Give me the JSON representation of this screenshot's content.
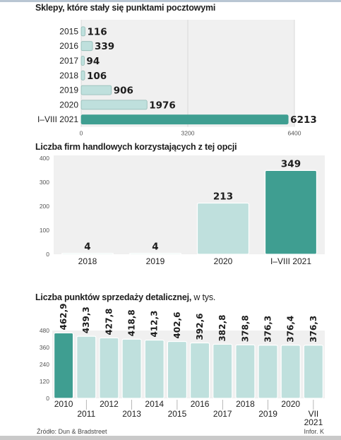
{
  "footer": {
    "source": "Źródło: Dun & Bradstreet",
    "credit": "Infor. K"
  },
  "colors": {
    "highlight": "#3f9e91",
    "bar": "#bfe0dd",
    "bar_stroke": "#ffffff",
    "panel": "#f0f0f0",
    "text": "#1d1d1d"
  },
  "chart_data": [
    {
      "type": "bar",
      "orientation": "horizontal",
      "title": "Sklepy, które stały się punktami pocztowymi",
      "categories": [
        "2015",
        "2016",
        "2017",
        "2018",
        "2019",
        "2020",
        "I–VIII 2021"
      ],
      "values": [
        116,
        339,
        94,
        106,
        906,
        1976,
        6213
      ],
      "value_labels": [
        "116",
        "339",
        "94",
        "106",
        "906",
        "1976",
        "6213"
      ],
      "highlight_index": 6,
      "xlim": [
        0,
        6400
      ],
      "xticks": [
        0,
        3200,
        6400
      ],
      "xtick_labels": [
        "0",
        "3200",
        "6400"
      ],
      "grid": true
    },
    {
      "type": "bar",
      "title": "Liczba firm handlowych korzystających z tej opcji",
      "categories": [
        "2018",
        "2019",
        "2020",
        "I–VIII 2021"
      ],
      "values": [
        4,
        4,
        213,
        349
      ],
      "value_labels": [
        "4",
        "4",
        "213",
        "349"
      ],
      "highlight_index": 3,
      "ylim": [
        0,
        400
      ],
      "yticks": [
        0,
        100,
        200,
        300,
        400
      ],
      "ytick_labels": [
        "0",
        "100",
        "200",
        "300",
        "400"
      ],
      "grid": false
    },
    {
      "type": "bar",
      "title": "Liczba punktów sprzedaży detalicznej,",
      "title_suffix": "w tys.",
      "categories": [
        "2010",
        "2011",
        "2012",
        "2013",
        "2014",
        "2015",
        "2016",
        "2017",
        "2018",
        "2019",
        "2020",
        "VII 2021"
      ],
      "category_lines": [
        [
          "2010"
        ],
        [
          "2011"
        ],
        [
          "2012"
        ],
        [
          "2013"
        ],
        [
          "2014"
        ],
        [
          "2015"
        ],
        [
          "2016"
        ],
        [
          "2017"
        ],
        [
          "2018"
        ],
        [
          "2019"
        ],
        [
          "2020"
        ],
        [
          "VII",
          "2021"
        ]
      ],
      "values": [
        462.9,
        439.3,
        427.8,
        418.8,
        412.3,
        402.6,
        392.6,
        382.8,
        378.8,
        376.3,
        376.4,
        376.3
      ],
      "value_labels": [
        "462,9",
        "439,3",
        "427,8",
        "418,8",
        "412,3",
        "402,6",
        "392,6",
        "382,8",
        "378,8",
        "376,3",
        "376,4",
        "376,3"
      ],
      "highlight_index": 0,
      "ylim": [
        0,
        480
      ],
      "yticks": [
        0,
        120,
        240,
        360,
        480
      ],
      "ytick_labels": [
        "0",
        "120",
        "240",
        "360",
        "480"
      ],
      "grid": false
    }
  ]
}
